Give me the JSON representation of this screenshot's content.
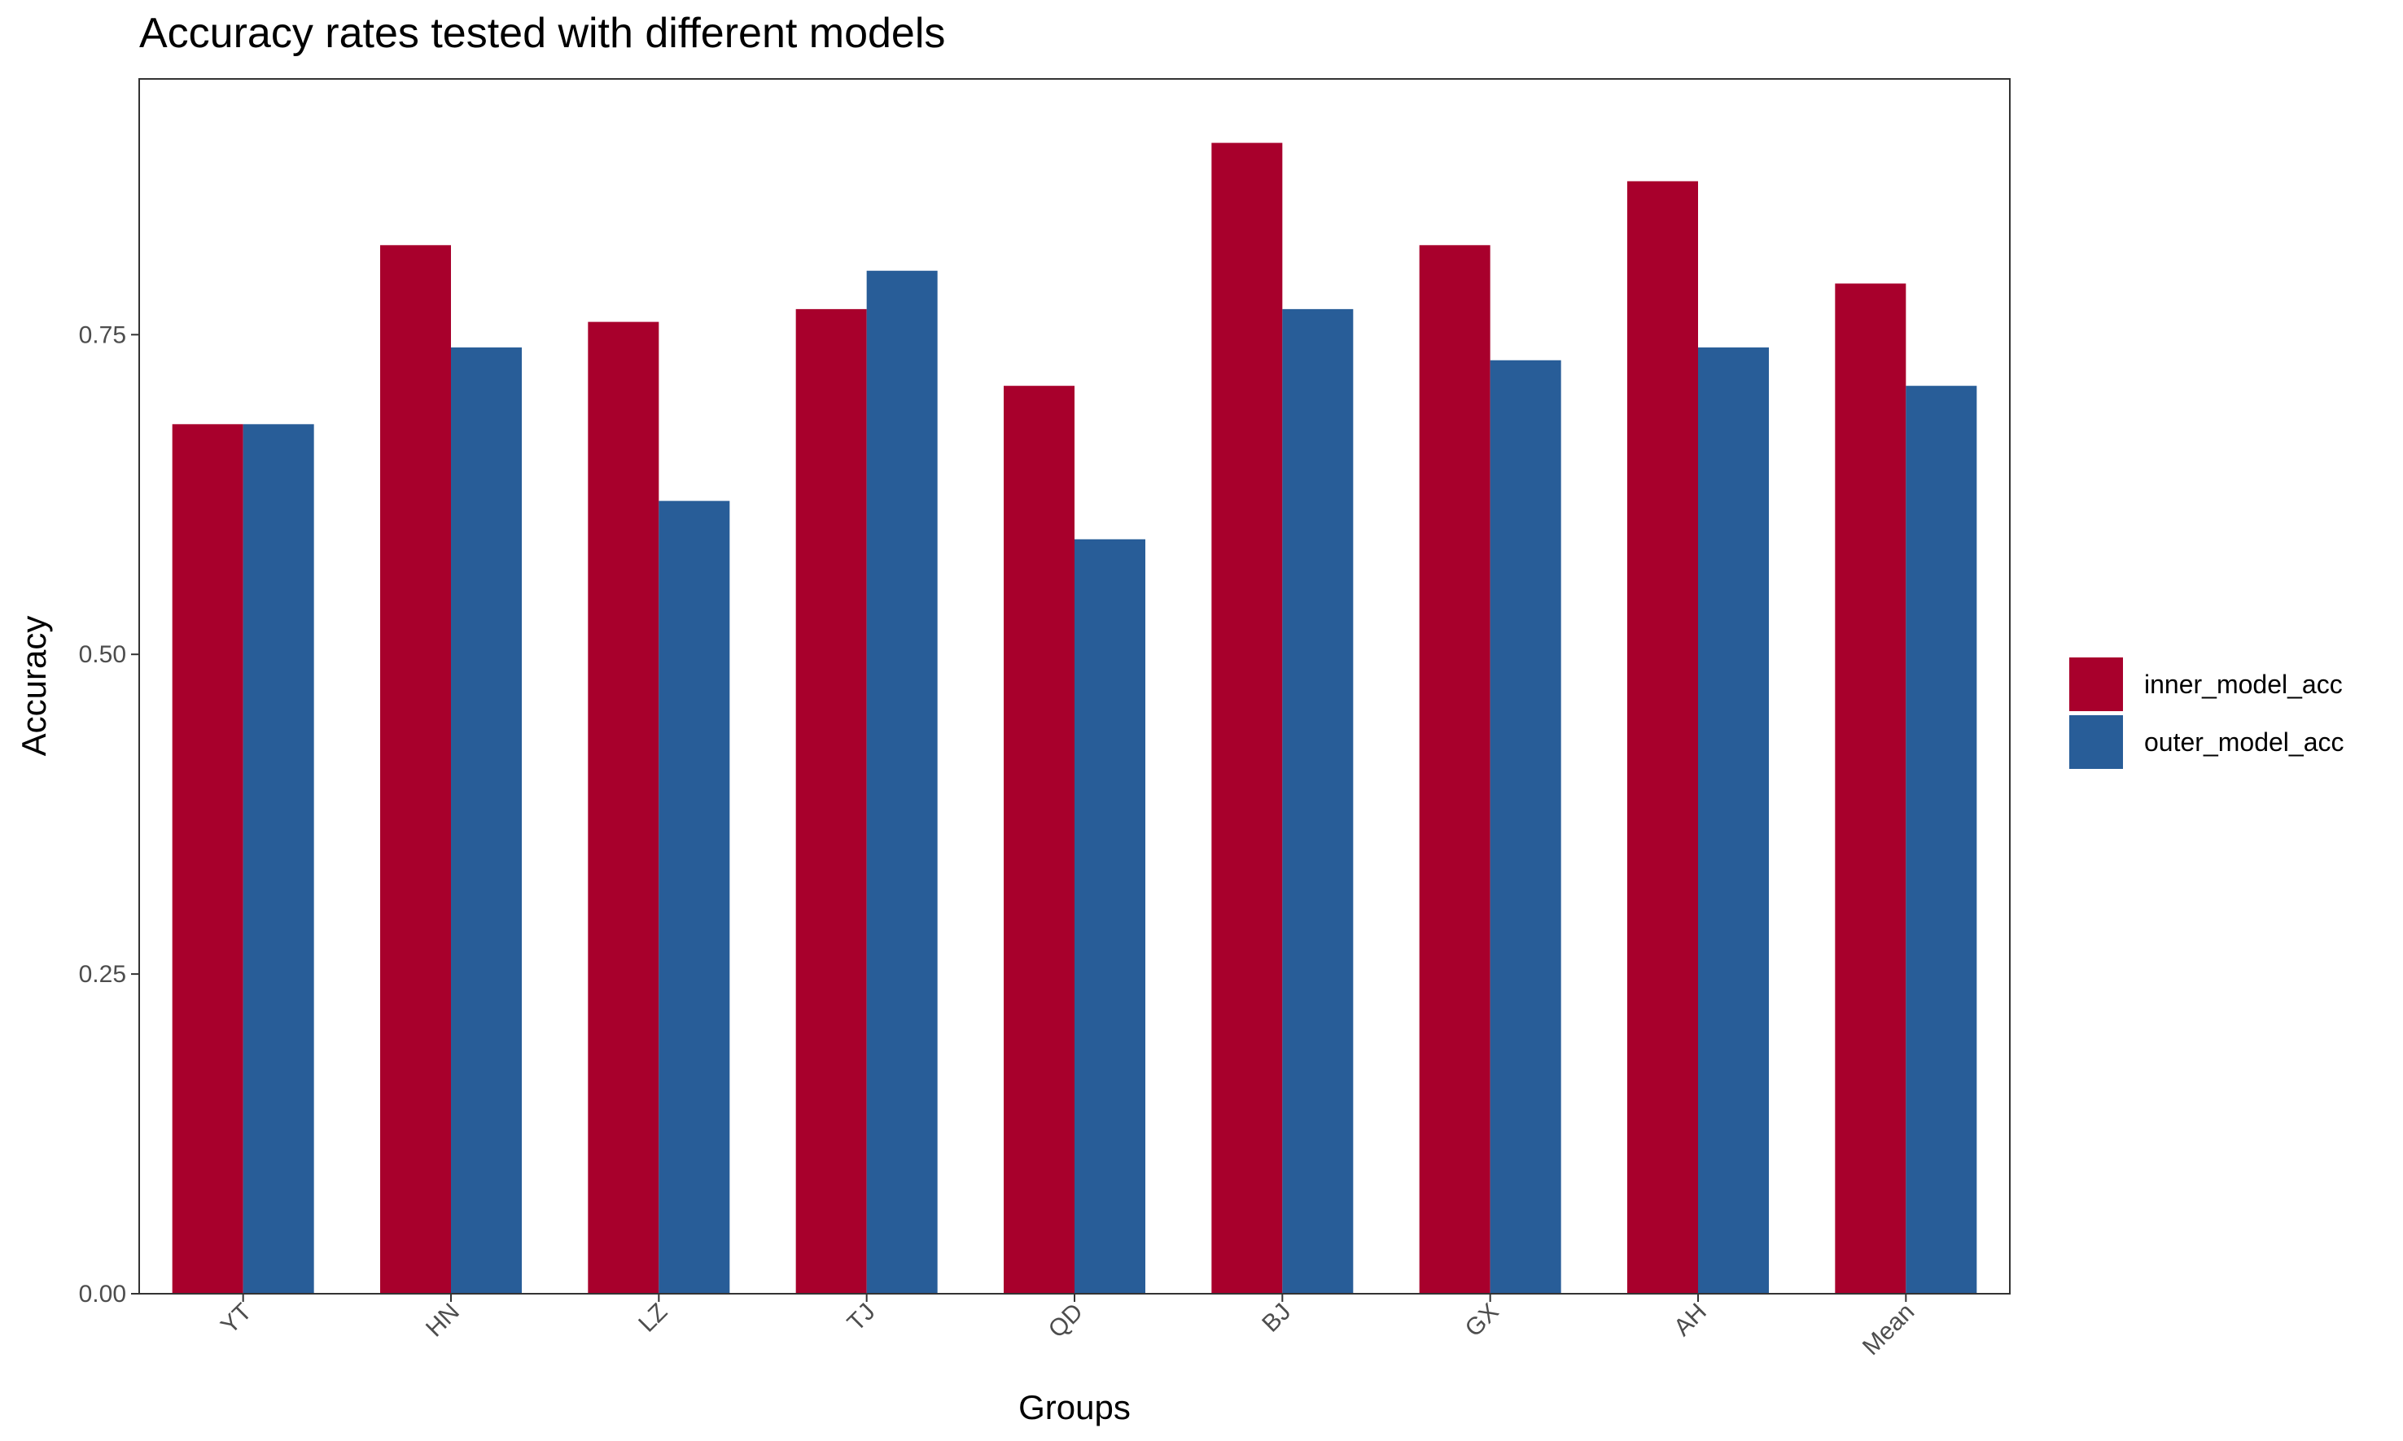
{
  "chart_data": {
    "type": "bar",
    "title": "Accuracy rates tested with different models",
    "xlabel": "Groups",
    "ylabel": "Accuracy",
    "categories": [
      "YT",
      "HN",
      "LZ",
      "TJ",
      "QD",
      "BJ",
      "GX",
      "AH",
      "Mean"
    ],
    "series": [
      {
        "name": "inner_model_acc",
        "color": "#A8002C",
        "values": [
          0.68,
          0.82,
          0.76,
          0.77,
          0.71,
          0.9,
          0.82,
          0.87,
          0.79
        ]
      },
      {
        "name": "outer_model_acc",
        "color": "#285D98",
        "values": [
          0.68,
          0.74,
          0.62,
          0.8,
          0.59,
          0.77,
          0.73,
          0.74,
          0.71
        ]
      }
    ],
    "ylim": [
      0,
      0.95
    ],
    "yticks": [
      0.0,
      0.25,
      0.5,
      0.75
    ],
    "ytick_labels": [
      "0.00",
      "0.25",
      "0.50",
      "0.75"
    ],
    "grid": false,
    "legend_position": "right",
    "x_tick_rotation": "45 degrees"
  }
}
